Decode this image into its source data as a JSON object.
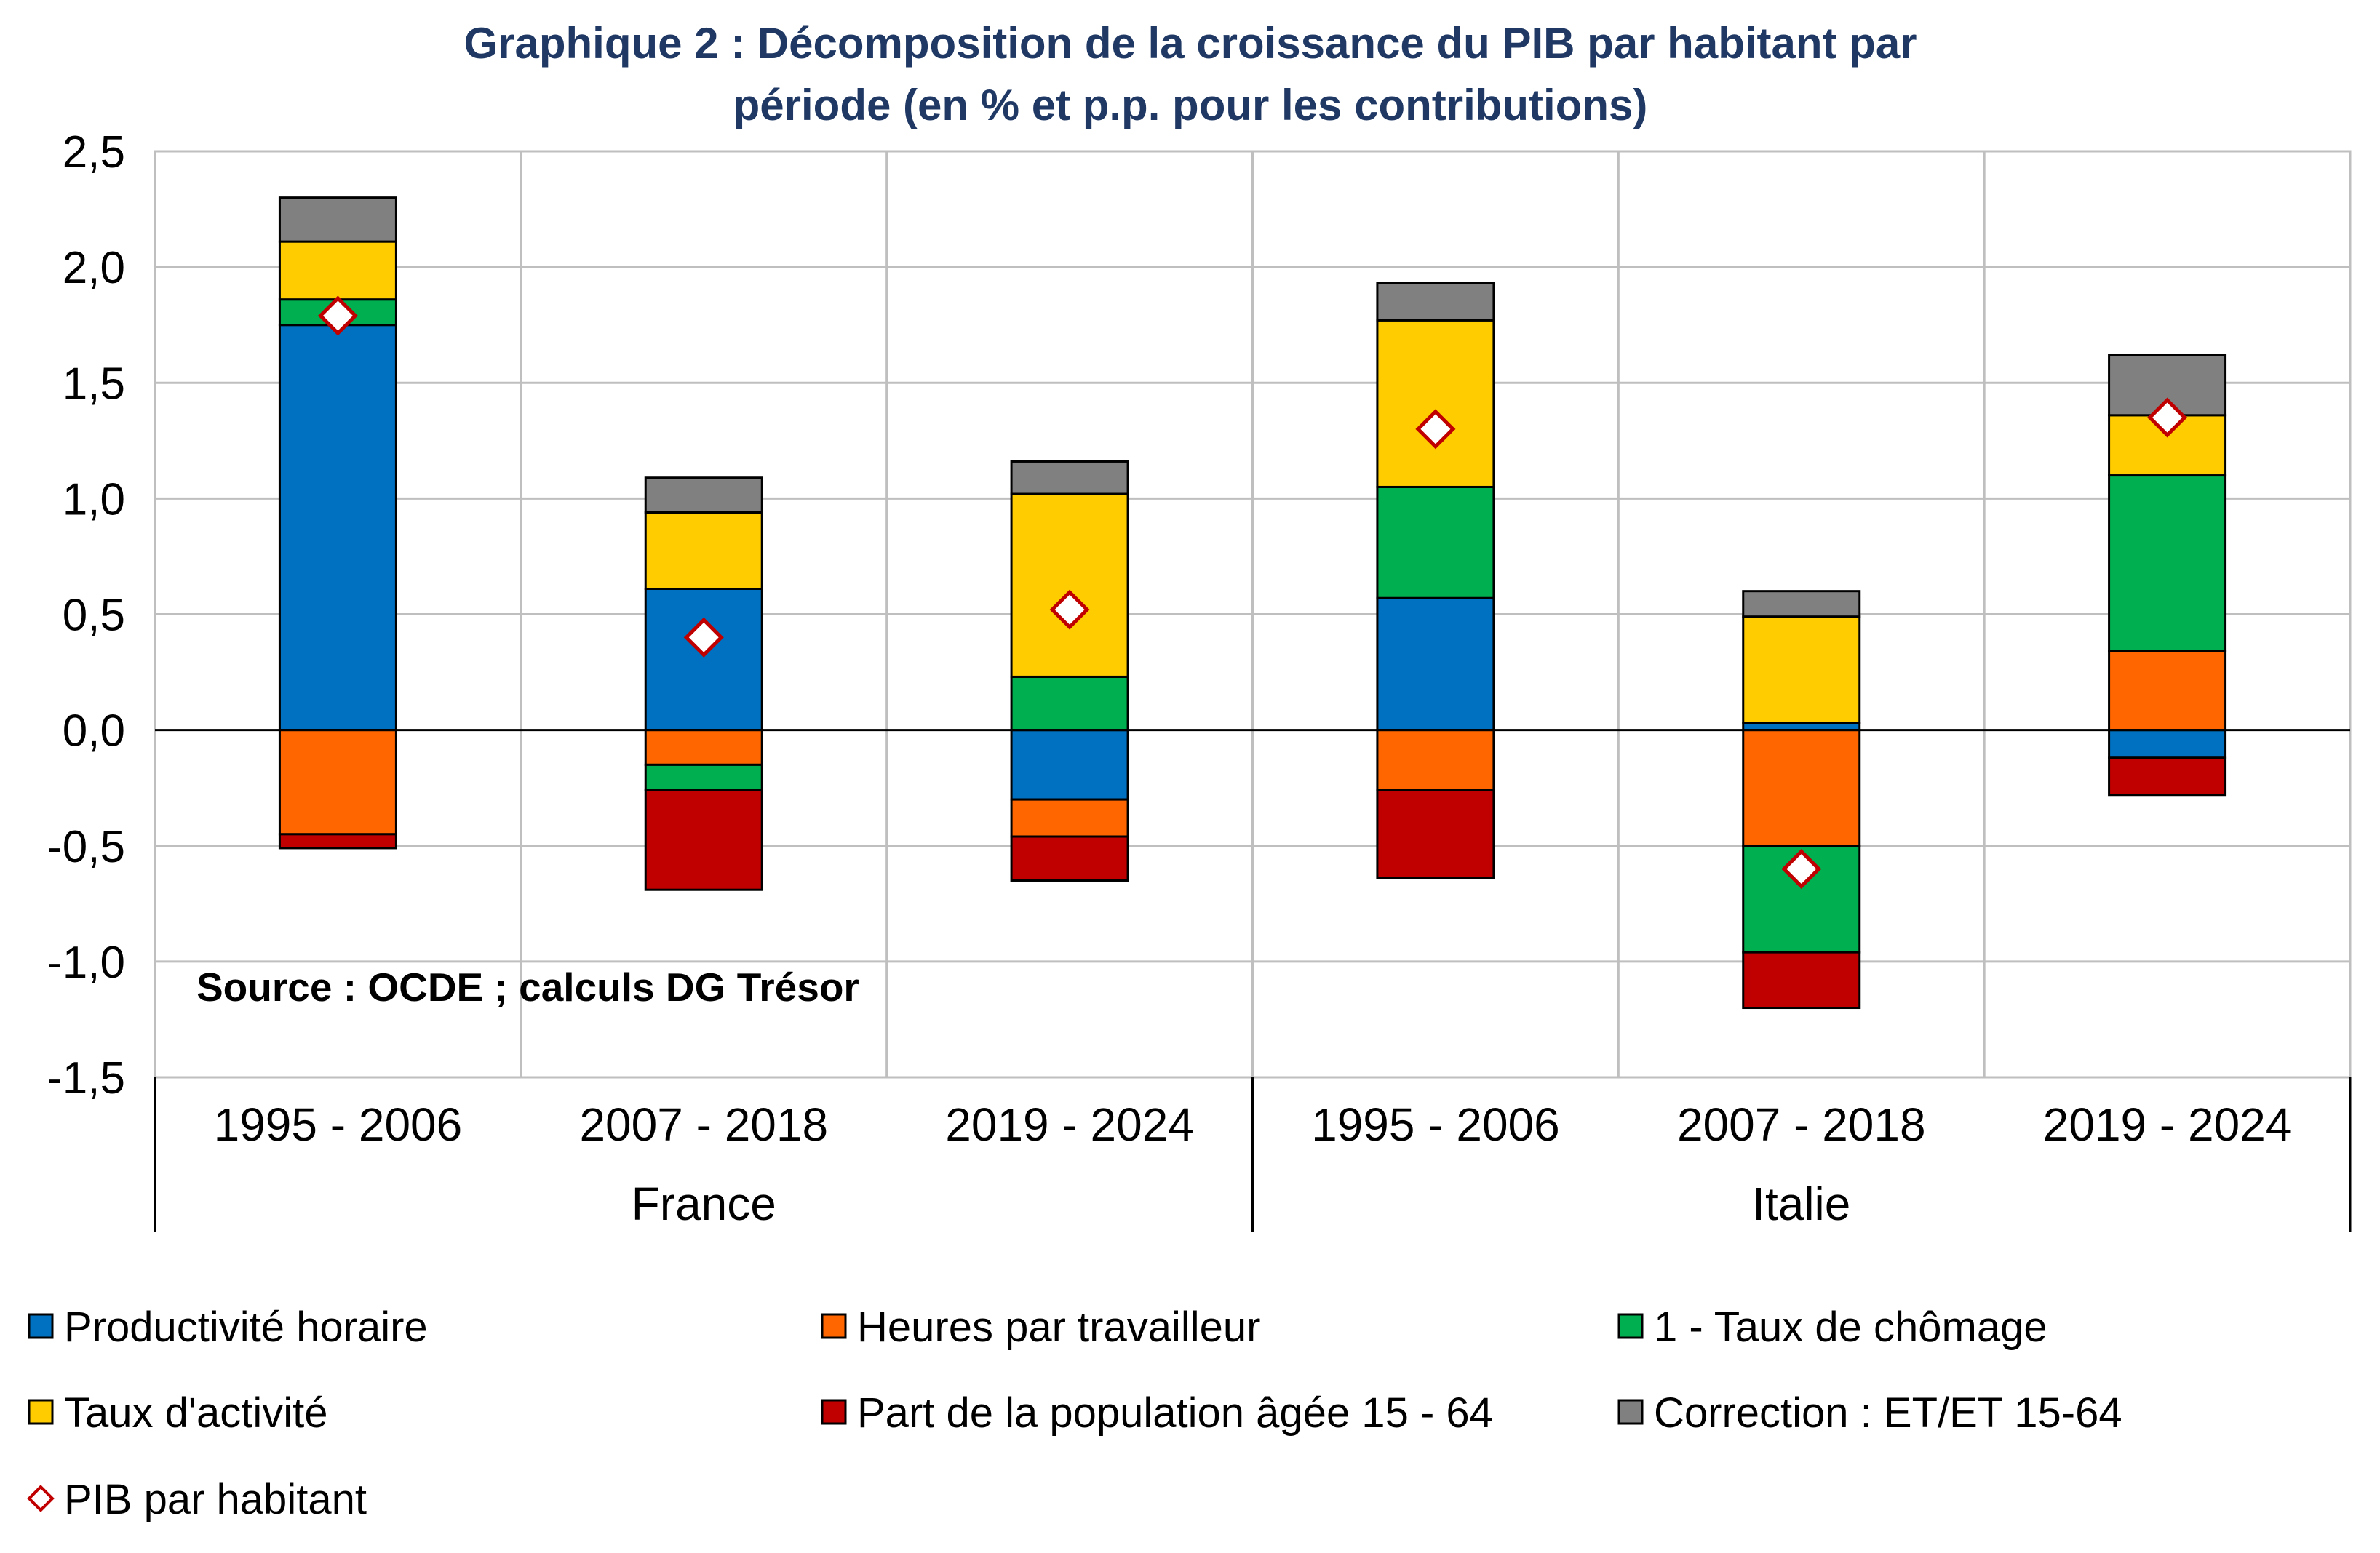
{
  "chart_data": {
    "type": "bar",
    "stacked": true,
    "title_lines": [
      "Graphique 2 : Décomposition de la croissance du PIB par habitant par",
      "période (en % et p.p. pour les contributions)"
    ],
    "source": "Source : OCDE ; calculs DG Trésor",
    "ylim": [
      -1.5,
      2.5
    ],
    "yticks": [
      "2,5",
      "2,0",
      "1,5",
      "1,0",
      "0,5",
      "0,0",
      "-0,5",
      "-1,0",
      "-1,5"
    ],
    "ytick_values": [
      2.5,
      2.0,
      1.5,
      1.0,
      0.5,
      0.0,
      -0.5,
      -1.0,
      -1.5
    ],
    "categories": [
      "1995 - 2006",
      "2007 - 2018",
      "2019 - 2024",
      "1995 - 2006",
      "2007 - 2018",
      "2019 - 2024"
    ],
    "groups": [
      {
        "name": "France",
        "span": [
          0,
          2
        ]
      },
      {
        "name": "Italie",
        "span": [
          3,
          5
        ]
      }
    ],
    "series": [
      {
        "name": "Productivité horaire",
        "color": "#0070C0",
        "values": [
          1.75,
          0.61,
          -0.3,
          0.57,
          0.03,
          -0.12
        ]
      },
      {
        "name": "Heures par travailleur",
        "color": "#FF6600",
        "values": [
          -0.45,
          -0.15,
          -0.16,
          -0.26,
          -0.5,
          0.34
        ]
      },
      {
        "name": "1 - Taux de chômage",
        "color": "#00B050",
        "values": [
          0.11,
          -0.11,
          0.23,
          0.48,
          -0.46,
          0.76
        ]
      },
      {
        "name": "Taux d'activité",
        "color": "#FFCC00",
        "values": [
          0.25,
          0.33,
          0.79,
          0.72,
          0.46,
          0.26
        ]
      },
      {
        "name": "Part de la population âgée 15 - 64",
        "color": "#C00000",
        "values": [
          -0.06,
          -0.43,
          -0.19,
          -0.38,
          -0.24,
          -0.16
        ]
      },
      {
        "name": "Correction : ET/ET 15-64",
        "color": "#808080",
        "values": [
          0.19,
          0.15,
          0.14,
          0.16,
          0.11,
          0.26
        ]
      }
    ],
    "line_series": {
      "name": "PIB par habitant",
      "color": "#C00000",
      "marker": "diamond",
      "values": [
        1.79,
        0.4,
        0.52,
        1.3,
        -0.6,
        1.35
      ]
    }
  }
}
